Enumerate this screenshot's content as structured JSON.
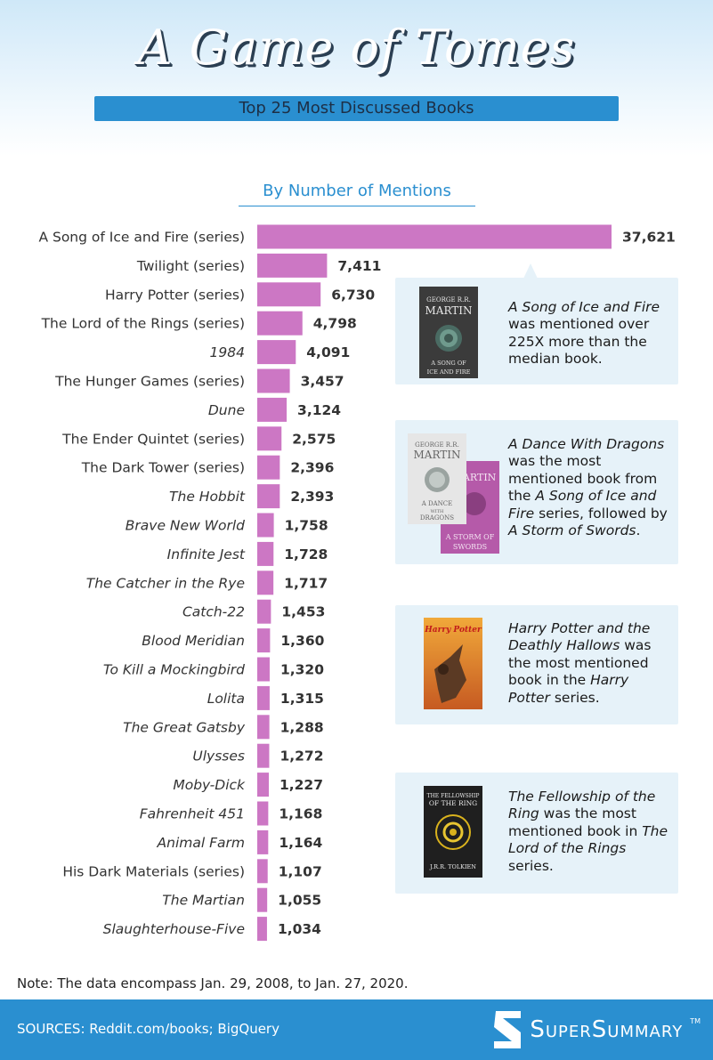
{
  "title": "A Game of Tomes",
  "subtitle": "Top 25 Most Discussed Books",
  "section_title": "By Number of Mentions",
  "chart_data": {
    "type": "bar",
    "orientation": "horizontal",
    "title": "By Number of Mentions",
    "bar_color": "#cc77c4",
    "categories": [
      {
        "label": "A Song of Ice and Fire (series)",
        "italic": false
      },
      {
        "label": "Twilight (series)",
        "italic": false
      },
      {
        "label": "Harry Potter (series)",
        "italic": false
      },
      {
        "label": "The Lord of the Rings (series)",
        "italic": false
      },
      {
        "label": "1984",
        "italic": true
      },
      {
        "label": "The Hunger Games (series)",
        "italic": false
      },
      {
        "label": "Dune",
        "italic": true
      },
      {
        "label": "The Ender Quintet (series)",
        "italic": false
      },
      {
        "label": "The Dark Tower (series)",
        "italic": false
      },
      {
        "label": "The Hobbit",
        "italic": true
      },
      {
        "label": "Brave New World",
        "italic": true
      },
      {
        "label": "Infinite Jest",
        "italic": true
      },
      {
        "label": "The Catcher in the Rye",
        "italic": true
      },
      {
        "label": "Catch-22",
        "italic": true
      },
      {
        "label": "Blood Meridian",
        "italic": true
      },
      {
        "label": "To Kill a Mockingbird",
        "italic": true
      },
      {
        "label": "Lolita",
        "italic": true
      },
      {
        "label": "The Great Gatsby",
        "italic": true
      },
      {
        "label": "Ulysses",
        "italic": true
      },
      {
        "label": "Moby-Dick",
        "italic": true
      },
      {
        "label": "Fahrenheit 451",
        "italic": true
      },
      {
        "label": "Animal Farm",
        "italic": true
      },
      {
        "label": "His Dark Materials (series)",
        "italic": false
      },
      {
        "label": "The Martian",
        "italic": true
      },
      {
        "label": "Slaughterhouse-Five",
        "italic": true
      }
    ],
    "values": [
      37621,
      7411,
      6730,
      4798,
      4091,
      3457,
      3124,
      2575,
      2396,
      2393,
      1758,
      1728,
      1717,
      1453,
      1360,
      1320,
      1315,
      1288,
      1272,
      1227,
      1168,
      1164,
      1107,
      1055,
      1034
    ],
    "value_labels": [
      "37,621",
      "7,411",
      "6,730",
      "4,798",
      "4,091",
      "3,457",
      "3,124",
      "2,575",
      "2,396",
      "2,393",
      "1,758",
      "1,728",
      "1,717",
      "1,453",
      "1,360",
      "1,320",
      "1,315",
      "1,288",
      "1,272",
      "1,227",
      "1,168",
      "1,164",
      "1,107",
      "1,055",
      "1,034"
    ],
    "xlim": [
      0,
      37621
    ]
  },
  "callouts": [
    {
      "cover_author": "GEORGE R.R.",
      "cover_author2": "MARTIN",
      "cover_title1": "A SONG OF",
      "cover_title2": "ICE AND FIRE",
      "text_html": "<i>A Song of Ice and Fire</i> was mentioned over 225X more than the median book."
    },
    {
      "cover_author": "GEORGE R.R.",
      "cover_author2": "MARTIN",
      "cover_title1": "A DANCE",
      "cover_title2": "WITH",
      "cover_title3": "DRAGONS",
      "cover2_author2": "MARTIN",
      "cover2_title1": "A STORM OF",
      "cover2_title2": "SWORDS",
      "text_html": "<i>A Dance With Dragons</i> was the most mentioned book from the <i>A Song of Ice and Fire</i> series, followed by <i>A Storm of Swords</i>."
    },
    {
      "cover_title": "Harry Potter",
      "text_html": "<i>Harry Potter and the Deathly Hallows</i> was the most mentioned book in the <i>Harry Potter</i> series."
    },
    {
      "cover_title1": "THE FELLOWSHIP",
      "cover_title2": "OF THE RING",
      "cover_author": "J.R.R. TOLKIEN",
      "text_html": "<i>The Fellowship of the Ring</i> was the most mentioned book in <i>The Lord of the Rings</i> series."
    }
  ],
  "note": "Note: The data encompass Jan. 29, 2008, to Jan. 27, 2020.",
  "footer": {
    "sources": "SOURCES: Reddit.com/books; BigQuery",
    "brand": "SuperSummary",
    "brand_tm": "TM"
  },
  "colors": {
    "accent_blue": "#2a8fd0",
    "bar": "#cc77c4",
    "callout_bg": "#e6f2f9"
  }
}
